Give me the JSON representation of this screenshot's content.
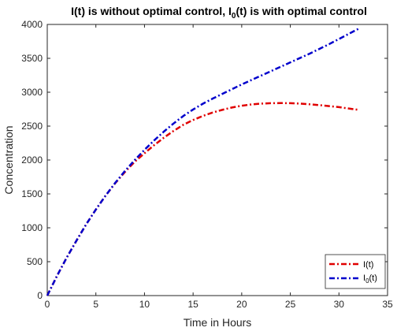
{
  "chart_data": {
    "type": "line",
    "title": {
      "part1": "I(t) is without optimal control, I",
      "sub": "0",
      "part2": "(t) is with optimal control"
    },
    "xlabel": "Time in Hours",
    "ylabel": "Concentration",
    "xlim": [
      0,
      35
    ],
    "ylim": [
      0,
      4000
    ],
    "xticks": [
      0,
      5,
      10,
      15,
      20,
      25,
      30,
      35
    ],
    "yticks": [
      0,
      500,
      1000,
      1500,
      2000,
      2500,
      3000,
      3500,
      4000
    ],
    "grid": false,
    "legend_position": "bottom-right",
    "series": [
      {
        "key": "i",
        "legend": {
          "main": "I(t)",
          "sub": ""
        },
        "color": "#e00000",
        "x": [
          0,
          1,
          2,
          3,
          4,
          5,
          6,
          7,
          8,
          9,
          10,
          11,
          12,
          13,
          14,
          15,
          16,
          17,
          18,
          19,
          20,
          21,
          22,
          23,
          24,
          25,
          26,
          27,
          28,
          29,
          30,
          31,
          32
        ],
        "y": [
          0,
          290,
          560,
          810,
          1050,
          1270,
          1475,
          1660,
          1825,
          1975,
          2100,
          2220,
          2330,
          2430,
          2520,
          2590,
          2650,
          2700,
          2740,
          2775,
          2800,
          2820,
          2832,
          2838,
          2840,
          2838,
          2832,
          2822,
          2810,
          2795,
          2780,
          2760,
          2740
        ]
      },
      {
        "key": "i0",
        "legend": {
          "main": "I",
          "sub": "0",
          "after": "(t)"
        },
        "color": "#0000cc",
        "x": [
          0,
          1,
          2,
          3,
          4,
          5,
          6,
          7,
          8,
          9,
          10,
          11,
          12,
          13,
          14,
          15,
          16,
          17,
          18,
          19,
          20,
          21,
          22,
          23,
          24,
          25,
          26,
          27,
          28,
          29,
          30,
          31,
          32
        ],
        "y": [
          0,
          290,
          560,
          810,
          1050,
          1270,
          1475,
          1665,
          1840,
          2000,
          2150,
          2290,
          2420,
          2540,
          2650,
          2745,
          2830,
          2905,
          2975,
          3045,
          3115,
          3180,
          3245,
          3310,
          3375,
          3440,
          3505,
          3570,
          3640,
          3710,
          3785,
          3860,
          3935
        ]
      }
    ]
  }
}
